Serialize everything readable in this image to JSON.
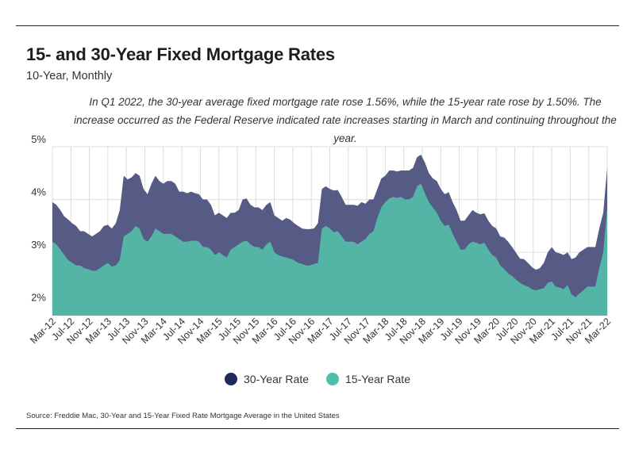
{
  "header": {
    "title": "15- and 30-Year Fixed Mortgage Rates",
    "subtitle": "10-Year, Monthly",
    "note": "In Q1 2022, the 30-year average fixed mortgage rate rose 1.56%, while the 15-year rate rose by 1.50%. The increase occurred as the Federal Reserve indicated rate increases starting in March and continuing throughout the year."
  },
  "colors": {
    "series30": "#555b84",
    "series15": "#54b5a7",
    "legend30": "#1f2a5c",
    "legend15": "#4dbfac",
    "grid": "#dddddd"
  },
  "legend": {
    "item30": "30-Year Rate",
    "item15": "15-Year Rate"
  },
  "source": "Source:  Freddie Mac, 30-Year  and 15-Year Fixed Rate Mortgage Average in the United States",
  "chart_data": {
    "type": "area",
    "title": "15- and 30-Year Fixed Mortgage Rates",
    "xlabel": "",
    "ylabel": "",
    "ylim": [
      1.8,
      5.0
    ],
    "y_ticks": [
      {
        "value": 5,
        "label": "5%"
      },
      {
        "value": 4,
        "label": "4%"
      },
      {
        "value": 3,
        "label": "3%"
      },
      {
        "value": 2,
        "label": "2%"
      }
    ],
    "x_tick_labels": [
      "Mar-12",
      "Jul-12",
      "Nov-12",
      "Mar-13",
      "Jul-13",
      "Nov-13",
      "Mar-14",
      "Jul-14",
      "Nov-14",
      "Mar-15",
      "Jul-15",
      "Nov-15",
      "Mar-16",
      "Jul-16",
      "Nov-16",
      "Mar-17",
      "Jul-17",
      "Nov-17",
      "Mar-18",
      "Jul-18",
      "Nov-18",
      "Mar-19",
      "Jul-19",
      "Nov-19",
      "Mar-20",
      "Jul-20",
      "Nov-20",
      "Mar-21",
      "Jul-21",
      "Nov-21",
      "Mar-22"
    ],
    "series": [
      {
        "name": "30-Year Rate",
        "values": [
          3.95,
          3.9,
          3.8,
          3.68,
          3.62,
          3.55,
          3.5,
          3.4,
          3.4,
          3.35,
          3.3,
          3.35,
          3.4,
          3.5,
          3.52,
          3.45,
          3.55,
          3.8,
          4.45,
          4.38,
          4.42,
          4.5,
          4.45,
          4.2,
          4.1,
          4.3,
          4.45,
          4.35,
          4.3,
          4.35,
          4.35,
          4.3,
          4.15,
          4.15,
          4.12,
          4.15,
          4.12,
          4.1,
          4.0,
          4.0,
          3.9,
          3.7,
          3.75,
          3.7,
          3.65,
          3.75,
          3.75,
          3.8,
          4.0,
          4.02,
          3.9,
          3.85,
          3.85,
          3.8,
          3.9,
          3.95,
          3.7,
          3.65,
          3.6,
          3.65,
          3.62,
          3.55,
          3.5,
          3.45,
          3.44,
          3.44,
          3.45,
          3.55,
          4.2,
          4.25,
          4.2,
          4.17,
          4.18,
          4.05,
          3.9,
          3.9,
          3.9,
          3.88,
          3.95,
          3.92,
          4.0,
          4.0,
          4.2,
          4.4,
          4.45,
          4.55,
          4.55,
          4.53,
          4.55,
          4.55,
          4.55,
          4.6,
          4.8,
          4.85,
          4.7,
          4.5,
          4.4,
          4.35,
          4.2,
          4.1,
          4.14,
          3.95,
          3.8,
          3.6,
          3.6,
          3.7,
          3.8,
          3.75,
          3.72,
          3.74,
          3.6,
          3.5,
          3.45,
          3.3,
          3.28,
          3.2,
          3.1,
          2.99,
          2.88,
          2.87,
          2.8,
          2.72,
          2.67,
          2.7,
          2.8,
          3.0,
          3.1,
          3.0,
          2.98,
          2.95,
          3.0,
          2.87,
          2.9,
          3.0,
          3.05,
          3.1,
          3.1,
          3.1,
          3.45,
          3.75,
          4.6
        ]
      },
      {
        "name": "15-Year Rate",
        "values": [
          3.2,
          3.15,
          3.05,
          2.95,
          2.85,
          2.8,
          2.75,
          2.75,
          2.7,
          2.68,
          2.65,
          2.65,
          2.7,
          2.75,
          2.8,
          2.73,
          2.75,
          2.85,
          3.3,
          3.35,
          3.4,
          3.5,
          3.45,
          3.25,
          3.2,
          3.3,
          3.45,
          3.4,
          3.35,
          3.35,
          3.35,
          3.3,
          3.25,
          3.2,
          3.2,
          3.22,
          3.22,
          3.2,
          3.1,
          3.1,
          3.05,
          2.95,
          3.0,
          2.95,
          2.9,
          3.05,
          3.1,
          3.15,
          3.2,
          3.22,
          3.15,
          3.1,
          3.1,
          3.05,
          3.15,
          3.2,
          3.0,
          2.95,
          2.92,
          2.9,
          2.88,
          2.85,
          2.8,
          2.78,
          2.75,
          2.75,
          2.78,
          2.8,
          3.45,
          3.5,
          3.45,
          3.38,
          3.4,
          3.3,
          3.2,
          3.2,
          3.2,
          3.15,
          3.2,
          3.25,
          3.35,
          3.4,
          3.65,
          3.85,
          3.95,
          4.02,
          4.05,
          4.03,
          4.05,
          4.0,
          4.0,
          4.05,
          4.25,
          4.3,
          4.12,
          3.95,
          3.85,
          3.75,
          3.6,
          3.5,
          3.52,
          3.35,
          3.2,
          3.05,
          3.05,
          3.15,
          3.2,
          3.18,
          3.15,
          3.18,
          3.05,
          2.95,
          2.9,
          2.75,
          2.68,
          2.6,
          2.55,
          2.48,
          2.42,
          2.38,
          2.35,
          2.3,
          2.28,
          2.3,
          2.32,
          2.42,
          2.45,
          2.35,
          2.33,
          2.3,
          2.38,
          2.2,
          2.15,
          2.22,
          2.28,
          2.35,
          2.35,
          2.35,
          2.7,
          3.0,
          3.85
        ]
      }
    ]
  }
}
